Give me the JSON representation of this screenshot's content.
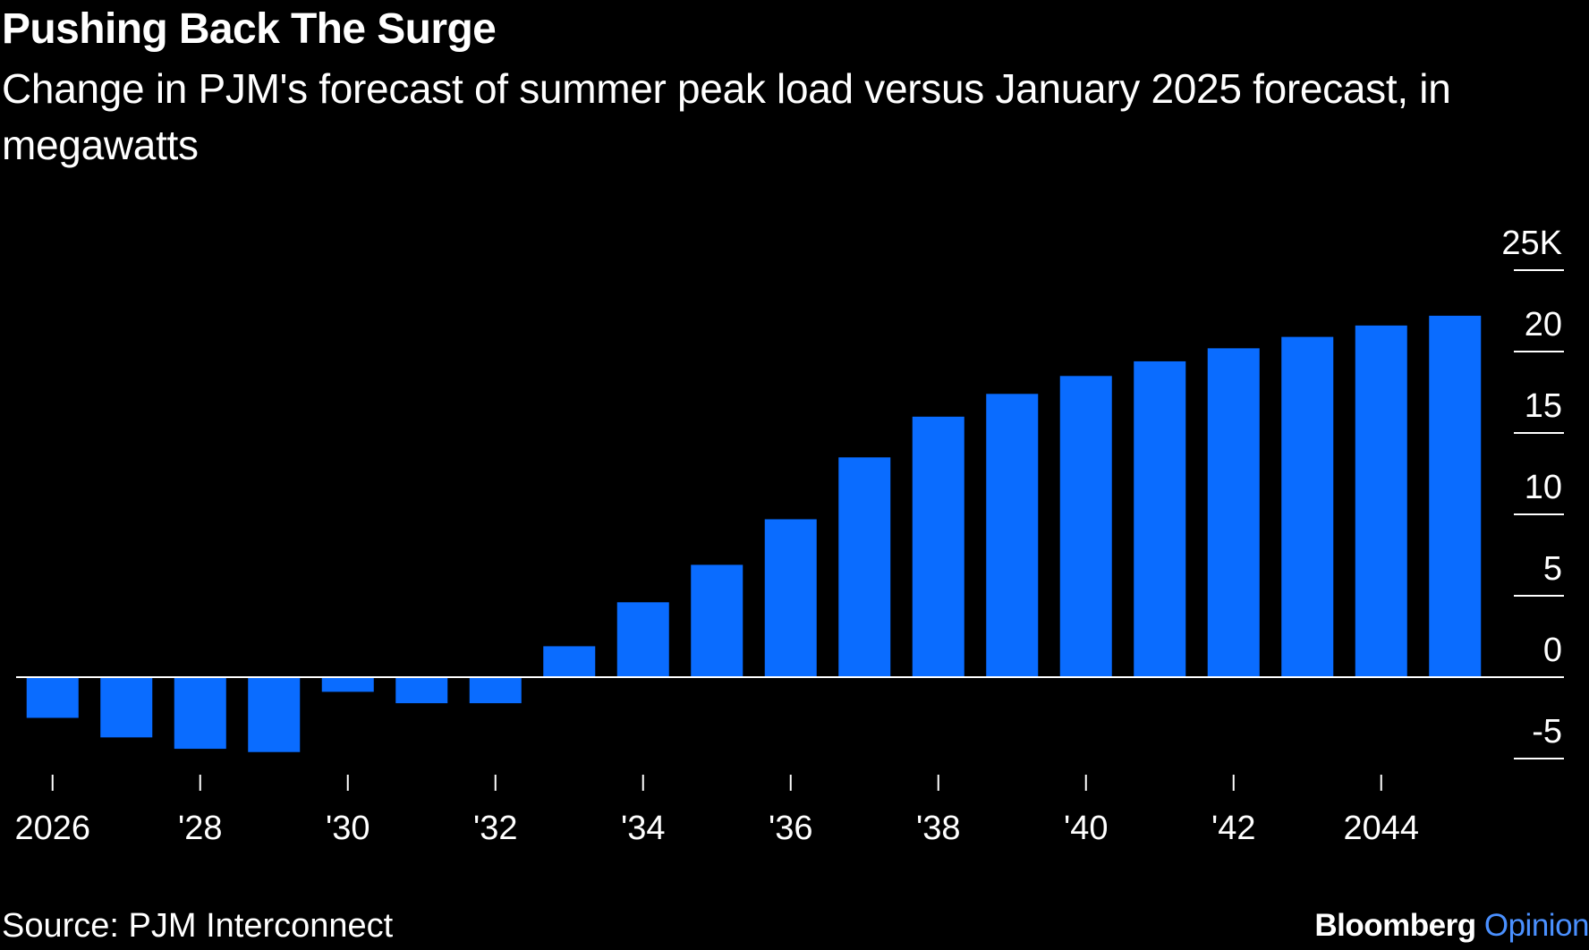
{
  "title": "Pushing Back The Surge",
  "subtitle": "Change in PJM's forecast of summer peak load versus January 2025 forecast, in megawatts",
  "source": "Source: PJM Interconnect",
  "brand": {
    "name": "Bloomberg",
    "section": "Opinion",
    "section_color": "#4a90ff"
  },
  "colors": {
    "background": "#000000",
    "bar": "#0a6cff",
    "text": "#ffffff"
  },
  "chart_data": {
    "type": "bar",
    "x": [
      2026,
      2027,
      2028,
      2029,
      2030,
      2031,
      2032,
      2033,
      2034,
      2035,
      2036,
      2037,
      2038,
      2039,
      2040,
      2041,
      2042,
      2043,
      2044,
      2045
    ],
    "values": [
      -2500,
      -3700,
      -4400,
      -4600,
      -900,
      -1600,
      -1600,
      1900,
      4600,
      6900,
      9700,
      13500,
      16000,
      17400,
      18500,
      19400,
      20200,
      20900,
      21600,
      22200
    ],
    "ylim": [
      -5000,
      25000
    ],
    "y_ticks": [
      -5,
      0,
      5,
      10,
      15,
      20,
      25
    ],
    "y_tick_labels": [
      "-5",
      "0",
      "5",
      "10",
      "15",
      "20",
      "25K"
    ],
    "x_ticks": [
      2026,
      2028,
      2030,
      2032,
      2034,
      2036,
      2038,
      2040,
      2042,
      2044
    ],
    "x_tick_labels": [
      "2026",
      "'28",
      "'30",
      "'32",
      "'34",
      "'36",
      "'38",
      "'40",
      "'42",
      "2044"
    ],
    "y_axis_position": "right",
    "xlabel": "",
    "ylabel": "",
    "grid": false
  }
}
